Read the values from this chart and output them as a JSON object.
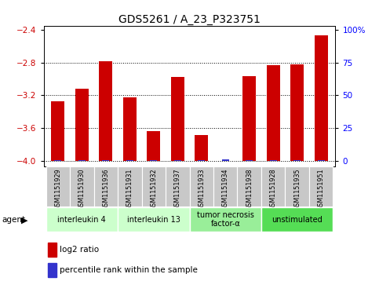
{
  "title": "GDS5261 / A_23_P323751",
  "samples": [
    "GSM1151929",
    "GSM1151930",
    "GSM1151936",
    "GSM1151931",
    "GSM1151932",
    "GSM1151937",
    "GSM1151933",
    "GSM1151934",
    "GSM1151938",
    "GSM1151928",
    "GSM1151935",
    "GSM1151951"
  ],
  "log2_values": [
    -3.27,
    -3.12,
    -2.78,
    -3.22,
    -3.64,
    -2.98,
    -3.68,
    -4.0,
    -2.97,
    -2.83,
    -2.82,
    -2.47
  ],
  "percentile_values": [
    3,
    5,
    7,
    4,
    3,
    5,
    4,
    8,
    6,
    5,
    5,
    6
  ],
  "bar_bottom": -4.0,
  "ylim": [
    -4.07,
    -2.35
  ],
  "yticks": [
    -4.0,
    -3.6,
    -3.2,
    -2.8,
    -2.4
  ],
  "right_yticks": [
    0,
    25,
    50,
    75,
    100
  ],
  "right_ylim": [
    -4.07,
    -2.35
  ],
  "right_yticklabels": [
    "0",
    "25",
    "50",
    "75",
    "100%"
  ],
  "red_color": "#cc0000",
  "blue_color": "#3333cc",
  "agent_groups": [
    {
      "label": "interleukin 4",
      "start": 0,
      "end": 3,
      "color": "#ccffcc"
    },
    {
      "label": "interleukin 13",
      "start": 3,
      "end": 6,
      "color": "#ccffcc"
    },
    {
      "label": "tumor necrosis\nfactor-α",
      "start": 6,
      "end": 9,
      "color": "#99ee99"
    },
    {
      "label": "unstimulated",
      "start": 9,
      "end": 12,
      "color": "#55dd55"
    }
  ],
  "legend_red_label": "log2 ratio",
  "legend_blue_label": "percentile rank within the sample",
  "agent_label": "agent",
  "bar_width": 0.55,
  "tick_label_fontsize": 5.8,
  "title_fontsize": 10,
  "grey_box_color": "#c8c8c8"
}
